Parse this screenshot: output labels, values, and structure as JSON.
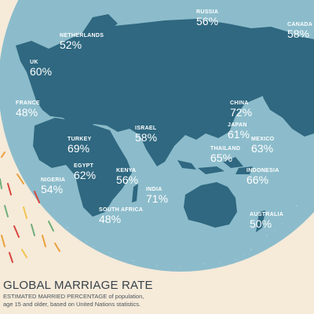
{
  "colors": {
    "background": "#f6ead9",
    "ocean": "#8cbccb",
    "land": "#2f6880",
    "label": "#ffffff",
    "title_text": "#37424a",
    "confetti": [
      "#e9a13b",
      "#d8463f",
      "#6fae7a",
      "#f2c44f"
    ]
  },
  "title": "GLOBAL MARRIAGE RATE",
  "subtitle_line1": "ESTIMATED MARRIED PERCENTAGE of population,",
  "subtitle_line2": "age 15 and older, based on United Nations statistics.",
  "countries": [
    {
      "key": "russia",
      "name": "RUSSIA",
      "rate": "56%"
    },
    {
      "key": "canada",
      "name": "CANADA",
      "rate": "58%"
    },
    {
      "key": "netherlands",
      "name": "NETHERLANDS",
      "rate": "52%"
    },
    {
      "key": "uk",
      "name": "UK",
      "rate": "60%"
    },
    {
      "key": "france",
      "name": "FRANCE",
      "rate": "48%"
    },
    {
      "key": "china",
      "name": "CHINA",
      "rate": "72%"
    },
    {
      "key": "japan",
      "name": "JAPAN",
      "rate": "61%"
    },
    {
      "key": "mexico",
      "name": "MEXICO",
      "rate": "63%"
    },
    {
      "key": "israel",
      "name": "ISRAEL",
      "rate": "58%"
    },
    {
      "key": "turkey",
      "name": "TURKEY",
      "rate": "69%"
    },
    {
      "key": "thailand",
      "name": "THAILAND",
      "rate": "65%"
    },
    {
      "key": "egypt",
      "name": "EGYPT",
      "rate": "62%"
    },
    {
      "key": "kenya",
      "name": "KENYA",
      "rate": "56%"
    },
    {
      "key": "indonesia",
      "name": "INDONESIA",
      "rate": "66%"
    },
    {
      "key": "nigeria",
      "name": "NIGERIA",
      "rate": "54%"
    },
    {
      "key": "india",
      "name": "INDIA",
      "rate": "71%"
    },
    {
      "key": "south_africa",
      "name": "SOUTH AFRICA",
      "rate": "48%"
    },
    {
      "key": "australia",
      "name": "AUSTRALIA",
      "rate": "50%"
    }
  ]
}
